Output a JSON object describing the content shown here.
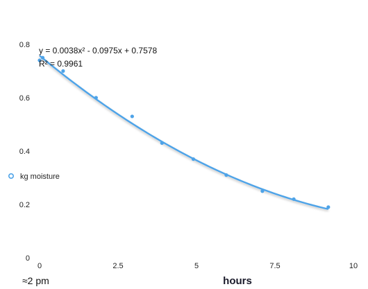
{
  "chart_data": {
    "type": "scatter",
    "title": "",
    "xlabel": "hours",
    "ylabel": "",
    "xlim": [
      0,
      10
    ],
    "ylim": [
      0,
      0.8
    ],
    "x_ticks": [
      0,
      2.5,
      5,
      7.5,
      10
    ],
    "x_tick_labels": [
      "0",
      "2.5",
      "5",
      "7.5",
      "10"
    ],
    "y_ticks": [
      0,
      0.2,
      0.4,
      0.6,
      0.8
    ],
    "y_tick_labels": [
      "0",
      "0.2",
      "0.4",
      "0.6",
      "0.8"
    ],
    "grid": false,
    "legend": "left",
    "series": [
      {
        "name": "kg moisture",
        "x": [
          0,
          0.1,
          0.75,
          1.8,
          2.95,
          3.9,
          4.9,
          5.95,
          7.1,
          8.1,
          9.2
        ],
        "y": [
          0.74,
          0.75,
          0.7,
          0.6,
          0.53,
          0.43,
          0.37,
          0.31,
          0.25,
          0.22,
          0.19
        ],
        "color": "#4ea3e8"
      }
    ],
    "trendline": {
      "type": "polynomial",
      "coefficients": [
        0.0038,
        -0.0975,
        0.7578
      ],
      "x_range": [
        0,
        9.2
      ],
      "color": "#4ea3e8",
      "equation": "y = 0.0038x² - 0.0975x + 0.7578",
      "r_squared": "R² = 0.9961"
    },
    "annotations": [
      "≈2 pm"
    ]
  }
}
